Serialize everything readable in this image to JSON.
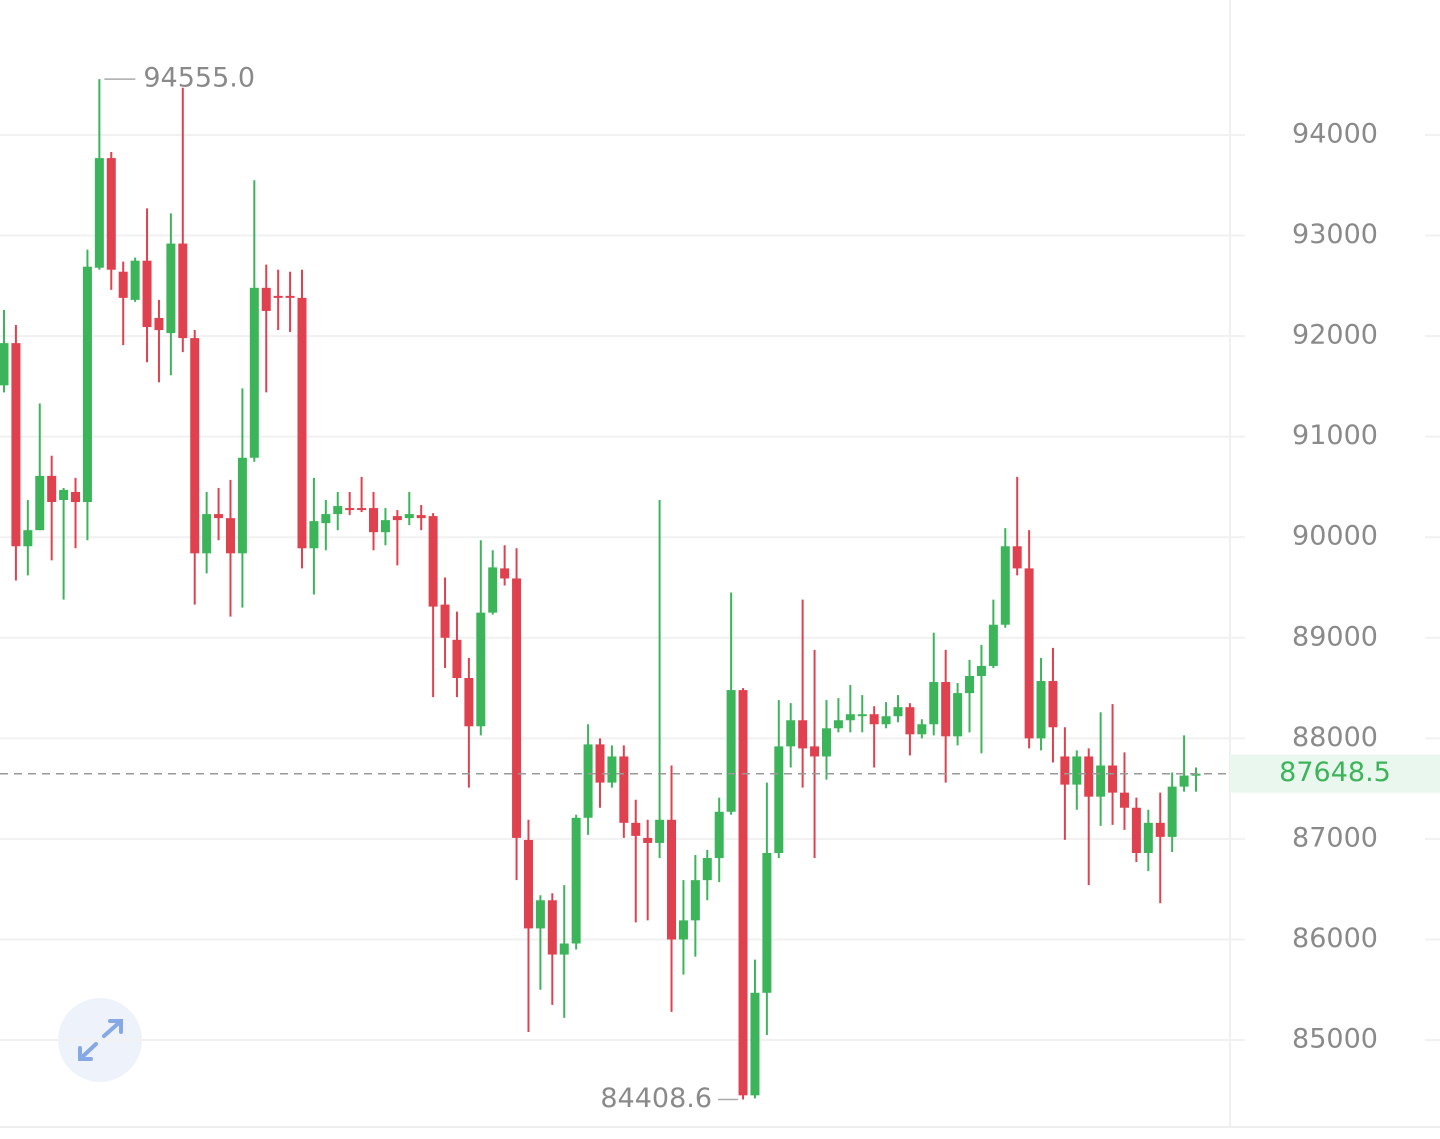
{
  "chart_data": {
    "type": "candlestick",
    "open": [
      91510,
      91930,
      89910,
      90070,
      90610,
      90370,
      90450,
      90350,
      92680,
      93770,
      92640,
      92360,
      92750,
      92180,
      92030,
      92920,
      91980,
      89840,
      90230,
      90190,
      89840,
      90790,
      92480,
      92400,
      92400,
      92380,
      89890,
      90140,
      90230,
      90290,
      90290,
      90290,
      90050,
      90210,
      90190,
      90220,
      90210,
      89330,
      88980,
      88600,
      88120,
      89250,
      89690,
      89590,
      86990,
      86110,
      86390,
      85850,
      85960,
      87210,
      87940,
      87560,
      87820,
      87160,
      87010,
      86960,
      87190,
      86000,
      86190,
      86590,
      86810,
      87270,
      88480,
      84450,
      85470,
      86860,
      87920,
      88180,
      87920,
      87820,
      88100,
      88180,
      88220,
      88240,
      88140,
      88220,
      88310,
      88040,
      88140,
      88560,
      88020,
      88450,
      88620,
      88720,
      89130,
      89910,
      89690,
      88000,
      88570,
      87820,
      87540,
      87820,
      87420,
      87730,
      87460,
      87310,
      86860,
      87160,
      87020,
      87520,
      87630
    ],
    "high": [
      92260,
      92110,
      90370,
      91330,
      90810,
      90490,
      90590,
      92860,
      94555,
      93830,
      92740,
      92780,
      93270,
      92360,
      93220,
      94470,
      92060,
      90450,
      90490,
      90570,
      91480,
      93550,
      92710,
      92660,
      92640,
      92660,
      90590,
      90370,
      90450,
      90450,
      90600,
      90450,
      90290,
      90270,
      90450,
      90320,
      90240,
      89600,
      89260,
      88800,
      89970,
      89870,
      89920,
      89890,
      87190,
      86440,
      86460,
      86540,
      87240,
      88140,
      88000,
      87930,
      87930,
      87390,
      87190,
      90370,
      87730,
      86590,
      86840,
      86890,
      87410,
      89450,
      88500,
      85800,
      87560,
      88380,
      88350,
      89380,
      88880,
      88380,
      88400,
      88530,
      88430,
      88320,
      88360,
      88430,
      88350,
      88190,
      89050,
      88880,
      88550,
      88780,
      88930,
      89380,
      90090,
      90600,
      90070,
      88800,
      88900,
      88110,
      87880,
      87900,
      88260,
      88340,
      87860,
      87410,
      87290,
      87460,
      87660,
      88030,
      87710
    ],
    "low": [
      91440,
      89570,
      89620,
      90070,
      89770,
      89380,
      89890,
      89970,
      92660,
      92460,
      91910,
      92340,
      91740,
      91540,
      91610,
      91840,
      89330,
      89640,
      89970,
      89210,
      89300,
      90750,
      91440,
      92060,
      92040,
      89690,
      89430,
      89870,
      90070,
      90220,
      90250,
      89870,
      89920,
      89720,
      90120,
      90070,
      88410,
      88700,
      88410,
      87510,
      88030,
      89230,
      89520,
      86590,
      85080,
      85500,
      85350,
      85220,
      85900,
      87040,
      87310,
      87510,
      87010,
      86170,
      86190,
      86810,
      85280,
      85650,
      85830,
      86390,
      86570,
      87240,
      84408.6,
      84420,
      85050,
      86810,
      87710,
      87510,
      86810,
      87590,
      88060,
      88060,
      88060,
      87710,
      88100,
      88160,
      87830,
      88000,
      88030,
      87560,
      87930,
      88060,
      87850,
      88700,
      89100,
      89620,
      87900,
      87880,
      87760,
      86990,
      87290,
      86540,
      87130,
      87140,
      87090,
      86770,
      86680,
      86360,
      86870,
      87470,
      87470
    ],
    "close": [
      91930,
      89910,
      90070,
      90610,
      90350,
      90470,
      90350,
      92690,
      93770,
      92660,
      92380,
      92750,
      92090,
      92060,
      92920,
      91980,
      89840,
      90230,
      90190,
      89840,
      90790,
      92480,
      92250,
      92380,
      92380,
      89890,
      90160,
      90230,
      90310,
      90270,
      90270,
      90050,
      90170,
      90170,
      90230,
      90190,
      89310,
      89000,
      88600,
      88120,
      89250,
      89700,
      89590,
      87010,
      86110,
      86390,
      85850,
      85960,
      87210,
      87940,
      87560,
      87820,
      87160,
      87030,
      86960,
      87190,
      86000,
      86190,
      86590,
      86810,
      87270,
      88480,
      84450,
      85470,
      86860,
      87920,
      88180,
      87900,
      87820,
      88100,
      88180,
      88240,
      88240,
      88140,
      88220,
      88310,
      88040,
      88140,
      88560,
      88020,
      88450,
      88620,
      88720,
      89130,
      89910,
      89690,
      88000,
      88570,
      88110,
      87540,
      87820,
      87420,
      87730,
      87460,
      87310,
      86860,
      87160,
      87020,
      87520,
      87630,
      87648.5
    ],
    "up_color": "#3cb55a",
    "down_color": "#e0414f",
    "ylim": [
      84016,
      95342
    ],
    "yticks": [
      85000,
      86000,
      87000,
      88000,
      89000,
      90000,
      91000,
      92000,
      93000,
      94000
    ],
    "grid": true,
    "max_label": {
      "value": 94555,
      "label": "94555.0"
    },
    "min_label": 84408.6,
    "last_price": 87648.5
  }
}
